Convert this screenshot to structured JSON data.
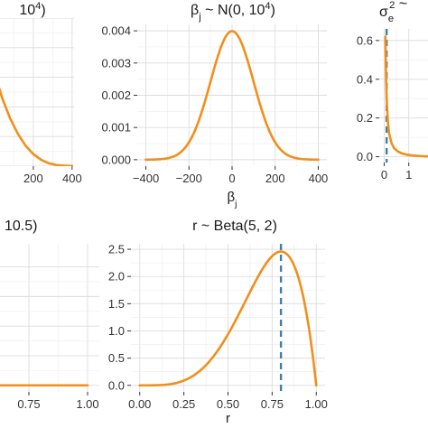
{
  "colors": {
    "curve": "#f28e1c",
    "dashed": "#3f7ea6"
  },
  "chart_data": [
    {
      "id": "p1",
      "type": "line",
      "title_parts": [
        {
          "t": "10"
        },
        {
          "t": "4",
          "sup": true
        },
        {
          "t": ")"
        }
      ],
      "x_ticks": [
        "200",
        "400"
      ],
      "y_ticks": [],
      "xlim": [
        -65,
        410
      ],
      "ylim": [
        0,
        1.05
      ],
      "grid": true,
      "series": [
        {
          "x": [
            -65,
            -40,
            0,
            40,
            80,
            120,
            160,
            200,
            240,
            280,
            320,
            360,
            400
          ],
          "y": [
            1.02,
            0.88,
            0.66,
            0.48,
            0.34,
            0.23,
            0.145,
            0.085,
            0.045,
            0.02,
            0.008,
            0.003,
            0.001
          ]
        }
      ]
    },
    {
      "id": "p2",
      "type": "line",
      "title_parts": [
        {
          "t": "β"
        },
        {
          "t": "j",
          "sub": true
        },
        {
          "t": " ~ N(0, 10"
        },
        {
          "t": "4",
          "sup": true
        },
        {
          "t": ")"
        }
      ],
      "xlabel_parts": [
        {
          "t": "β"
        },
        {
          "t": "j",
          "sub": true
        }
      ],
      "x_ticks": [
        "−400",
        "−200",
        "0",
        "200",
        "400"
      ],
      "x_tick_values": [
        -400,
        -200,
        0,
        200,
        400
      ],
      "y_ticks": [
        "0.000",
        "0.001",
        "0.002",
        "0.003",
        "0.004"
      ],
      "y_tick_values": [
        0,
        0.001,
        0.002,
        0.003,
        0.004
      ],
      "xlim": [
        -440,
        440
      ],
      "ylim": [
        -0.0002,
        0.0042
      ],
      "grid": true,
      "series": [
        {
          "distribution": "normal",
          "mean": 0,
          "variance": 10000,
          "x_range": [
            -400,
            400
          ]
        }
      ]
    },
    {
      "id": "p3",
      "type": "line",
      "title_parts": [
        {
          "t": "σ"
        },
        {
          "t": "e",
          "sub": true,
          "sup2": "2"
        },
        {
          "t": " ~"
        }
      ],
      "x_ticks": [
        "0",
        "1"
      ],
      "x_tick_values": [
        0,
        1
      ],
      "y_ticks": [
        "0.0",
        "0.2",
        "0.4",
        "0.6"
      ],
      "y_tick_values": [
        0,
        0.2,
        0.4,
        0.6
      ],
      "xlim": [
        -0.2,
        2.0
      ],
      "ylim": [
        -0.03,
        0.66
      ],
      "grid": true,
      "series": [
        {
          "x": [
            0.05,
            0.07,
            0.1,
            0.15,
            0.2,
            0.3,
            0.4,
            0.55,
            0.7,
            0.9,
            1.1,
            1.4,
            1.7,
            2.0
          ],
          "y": [
            0.62,
            0.45,
            0.3,
            0.18,
            0.12,
            0.07,
            0.045,
            0.028,
            0.018,
            0.011,
            0.007,
            0.004,
            0.002,
            0.001
          ]
        }
      ],
      "reference_line_x": 0.1
    },
    {
      "id": "p4",
      "type": "line",
      "title_parts": [
        {
          "t": "10.5)"
        }
      ],
      "x_ticks": [
        "0.75",
        "1.00"
      ],
      "x_tick_values": [
        0.75,
        1.0
      ],
      "y_ticks": [],
      "xlim": [
        0.55,
        1.05
      ],
      "ylim": [
        -0.12,
        2.6
      ],
      "grid": true,
      "series": [
        {
          "x": [
            0.55,
            1.0
          ],
          "y": [
            0.0,
            0.0
          ]
        }
      ]
    },
    {
      "id": "p5",
      "type": "line",
      "title_parts": [
        {
          "t": "r ~ Beta(5, 2)"
        }
      ],
      "xlabel_parts": [
        {
          "t": "r"
        }
      ],
      "x_ticks": [
        "0.00",
        "0.25",
        "0.50",
        "0.75",
        "1.00"
      ],
      "x_tick_values": [
        0,
        0.25,
        0.5,
        0.75,
        1.0
      ],
      "y_ticks": [
        "0.0",
        "0.5",
        "1.0",
        "1.5",
        "2.0",
        "2.5"
      ],
      "y_tick_values": [
        0,
        0.5,
        1.0,
        1.5,
        2.0,
        2.5
      ],
      "xlim": [
        -0.05,
        1.05
      ],
      "ylim": [
        -0.12,
        2.6
      ],
      "grid": true,
      "series": [
        {
          "distribution": "beta",
          "alpha": 5,
          "beta": 2,
          "x_range": [
            0,
            1
          ]
        }
      ],
      "reference_line_x": 0.8
    }
  ]
}
